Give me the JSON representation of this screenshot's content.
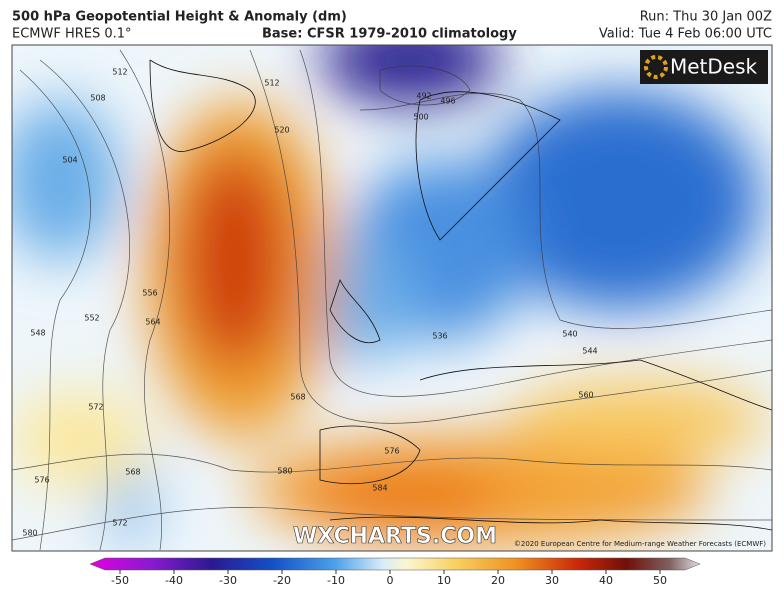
{
  "header": {
    "title": "500 hPa Geopotential Height & Anomaly (dm)",
    "model": "ECMWF HRES 0.1°",
    "base": "Base: CFSR 1979-2010 climatology",
    "run": "Run: Thu 30 Jan 00Z",
    "valid": "Valid: Tue 4 Feb 06:00 UTC"
  },
  "logo": "MetDesk",
  "watermark": "WXCHARTS.COM",
  "copyright": "©2020 European Centre for Medium-range Weather Forecasts (ECMWF)",
  "contour_labels": [
    508,
    512,
    504,
    512,
    520,
    556,
    552,
    548,
    564,
    572,
    568,
    568,
    572,
    576,
    580,
    576,
    584,
    580,
    492,
    496,
    500,
    540,
    544,
    560,
    536
  ],
  "colorbar": {
    "ticks": [
      -50,
      -40,
      -30,
      -20,
      -10,
      0,
      10,
      20,
      30,
      40,
      50
    ]
  }
}
